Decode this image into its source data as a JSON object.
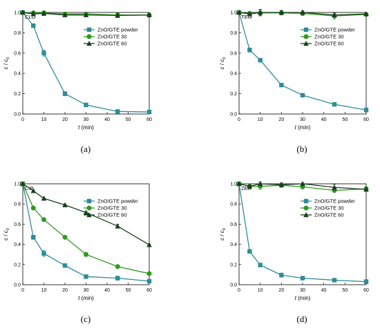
{
  "chart_data": [
    {
      "type": "line",
      "panel_label": "CLO",
      "caption": "(a)",
      "xlabel_italic": "t",
      "xlabel_unit": " (min)",
      "ylabel_c": "c",
      "ylabel_sep": " / ",
      "ylabel_c0": "c",
      "ylabel_c0_sub": "0",
      "xlim": [
        0,
        60
      ],
      "ylim": [
        0,
        1.0
      ],
      "xticks": [
        0,
        10,
        20,
        30,
        40,
        50,
        60
      ],
      "yticks": [
        "0.0",
        "0.2",
        "0.4",
        "0.6",
        "0.8",
        "1.0"
      ],
      "legend_position": "right",
      "series": [
        {
          "name": "ZnO/GTE powder",
          "marker": "square",
          "color": "#2e8b9a",
          "x": [
            0,
            5,
            10,
            20,
            30,
            45,
            60
          ],
          "y": [
            1.0,
            0.87,
            0.6,
            0.2,
            0.09,
            0.025,
            0.02
          ],
          "err": [
            0,
            0.01,
            0.03,
            0.02,
            0.01,
            0.01,
            0.01
          ]
        },
        {
          "name": "ZnO/GTE 30",
          "marker": "circle",
          "color": "#2e9a1e",
          "x": [
            0,
            5,
            10,
            20,
            30,
            45,
            60
          ],
          "y": [
            1.0,
            0.995,
            0.995,
            0.985,
            0.985,
            0.975,
            0.975
          ],
          "err": [
            0,
            0.02,
            0.02,
            0.01,
            0.01,
            0.02,
            0.02
          ]
        },
        {
          "name": "ZnO/GTE 60",
          "marker": "triangle",
          "color": "#1a3d1e",
          "x": [
            0,
            5,
            10,
            20,
            30,
            45,
            60
          ],
          "y": [
            1.0,
            0.985,
            0.99,
            0.975,
            0.975,
            0.97,
            0.975
          ],
          "err": [
            0,
            0.02,
            0.02,
            0.01,
            0.01,
            0.02,
            0.01
          ]
        }
      ]
    },
    {
      "type": "line",
      "panel_label": "TEM",
      "caption": "(b)",
      "xlabel_italic": "t",
      "xlabel_unit": " (min)",
      "ylabel_c": "c",
      "ylabel_sep": " / ",
      "ylabel_c0": "c",
      "ylabel_c0_sub": "0",
      "xlim": [
        0,
        60
      ],
      "ylim": [
        0,
        1.0
      ],
      "xticks": [
        0,
        10,
        20,
        30,
        40,
        50,
        60
      ],
      "yticks": [
        "0.0",
        "0.2",
        "0.4",
        "0.6",
        "0.8",
        "1.0"
      ],
      "legend_position": "right",
      "series": [
        {
          "name": "ZnO/GTE powder",
          "marker": "square",
          "color": "#2e8b9a",
          "x": [
            0,
            5,
            10,
            20,
            30,
            45,
            60
          ],
          "y": [
            1.0,
            0.63,
            0.53,
            0.285,
            0.185,
            0.095,
            0.04
          ],
          "err": [
            0,
            0.02,
            0.01,
            0.01,
            0.01,
            0.01,
            0.02
          ]
        },
        {
          "name": "ZnO/GTE 30",
          "marker": "circle",
          "color": "#2e9a1e",
          "x": [
            0,
            5,
            10,
            20,
            30,
            45,
            60
          ],
          "y": [
            1.0,
            0.99,
            0.995,
            0.995,
            0.99,
            0.965,
            0.98
          ],
          "err": [
            0,
            0.02,
            0.03,
            0.02,
            0.02,
            0.03,
            0.01
          ]
        },
        {
          "name": "ZnO/GTE 60",
          "marker": "triangle",
          "color": "#1a3d1e",
          "x": [
            0,
            5,
            10,
            20,
            30,
            45,
            60
          ],
          "y": [
            1.0,
            0.985,
            1.0,
            1.0,
            1.0,
            0.975,
            0.985
          ],
          "err": [
            0,
            0.01,
            0.03,
            0.02,
            0.02,
            0.02,
            0.01
          ]
        }
      ]
    },
    {
      "type": "line",
      "panel_label": "CIP",
      "caption": "(c)",
      "xlabel_italic": "t",
      "xlabel_unit": " (min)",
      "ylabel_c": "c",
      "ylabel_sep": " / ",
      "ylabel_c0": "c",
      "ylabel_c0_sub": "0",
      "xlim": [
        0,
        60
      ],
      "ylim": [
        0,
        1.0
      ],
      "xticks": [
        0,
        10,
        20,
        30,
        40,
        50,
        60
      ],
      "yticks": [
        "0.0",
        "0.2",
        "0.4",
        "0.6",
        "0.8",
        "1.0"
      ],
      "legend_position": "right",
      "series": [
        {
          "name": "ZnO/GTE powder",
          "marker": "square",
          "color": "#2e8b9a",
          "x": [
            0,
            5,
            10,
            20,
            30,
            45,
            60
          ],
          "y": [
            1.0,
            0.47,
            0.31,
            0.19,
            0.08,
            0.065,
            0.035
          ],
          "err": [
            0,
            0.02,
            0.03,
            0.01,
            0.01,
            0.02,
            0.01
          ]
        },
        {
          "name": "ZnO/GTE 30",
          "marker": "circle",
          "color": "#2e9a1e",
          "x": [
            0,
            5,
            10,
            20,
            30,
            45,
            60
          ],
          "y": [
            1.0,
            0.76,
            0.645,
            0.47,
            0.3,
            0.18,
            0.11
          ],
          "err": [
            0,
            0.01,
            0.01,
            0.01,
            0.02,
            0.01,
            0.01
          ]
        },
        {
          "name": "ZnO/GTE 60",
          "marker": "triangle",
          "color": "#1a3d1e",
          "x": [
            0,
            5,
            10,
            20,
            30,
            45,
            60
          ],
          "y": [
            1.0,
            0.93,
            0.855,
            0.79,
            0.715,
            0.58,
            0.395
          ],
          "err": [
            0,
            0.01,
            0.01,
            0.01,
            0.01,
            0.02,
            0.01
          ]
        }
      ]
    },
    {
      "type": "line",
      "panel_label": "ZEA",
      "caption": "(d)",
      "xlabel_italic": "t",
      "xlabel_unit": " (min)",
      "ylabel_c": "c",
      "ylabel_sep": " / ",
      "ylabel_c0": "c",
      "ylabel_c0_sub": "0",
      "xlim": [
        0,
        60
      ],
      "ylim": [
        0,
        1.0
      ],
      "xticks": [
        0,
        10,
        20,
        30,
        40,
        50,
        60
      ],
      "yticks": [
        "0.0",
        "0.2",
        "0.4",
        "0.6",
        "0.8",
        "1.0"
      ],
      "legend_position": "right",
      "series": [
        {
          "name": "ZnO/GTE powder",
          "marker": "square",
          "color": "#2e8b9a",
          "x": [
            0,
            5,
            10,
            20,
            30,
            45,
            60
          ],
          "y": [
            1.0,
            0.33,
            0.195,
            0.095,
            0.065,
            0.045,
            0.03
          ],
          "err": [
            0,
            0.01,
            0.01,
            0.02,
            0.01,
            0.01,
            0.02
          ]
        },
        {
          "name": "ZnO/GTE 30",
          "marker": "circle",
          "color": "#2e9a1e",
          "x": [
            0,
            5,
            10,
            20,
            30,
            45,
            60
          ],
          "y": [
            1.0,
            0.975,
            0.975,
            0.985,
            0.97,
            0.935,
            0.95
          ],
          "err": [
            0,
            0.02,
            0.03,
            0.02,
            0.02,
            0.02,
            0.02
          ]
        },
        {
          "name": "ZnO/GTE 60",
          "marker": "triangle",
          "color": "#1a3d1e",
          "x": [
            0,
            5,
            10,
            20,
            30,
            45,
            60
          ],
          "y": [
            1.0,
            0.975,
            1.0,
            0.99,
            1.0,
            0.965,
            0.945
          ],
          "err": [
            0,
            0.01,
            0.02,
            0.02,
            0.01,
            0.03,
            0.02
          ]
        }
      ]
    }
  ]
}
